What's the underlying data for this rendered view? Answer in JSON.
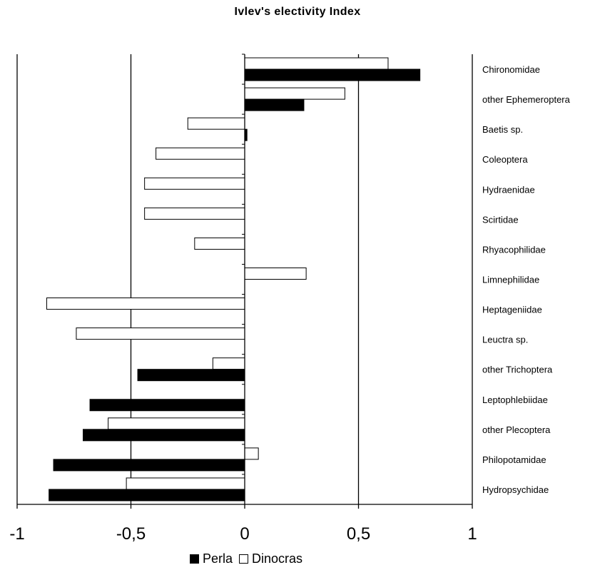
{
  "chart_data": {
    "type": "bar",
    "orientation": "horizontal",
    "title": "Ivlev's electivity Index",
    "xlabel": "",
    "ylabel": "",
    "xlim": [
      -1,
      1
    ],
    "xticks": [
      "-1",
      "-0,5",
      "0",
      "0,5",
      "1"
    ],
    "grid": "vertical major gridlines",
    "legend_position": "bottom",
    "categories": [
      "Chironomidae",
      "other Ephemeroptera",
      "Baetis sp.",
      "Coleoptera",
      "Hydraenidae",
      "Scirtidae",
      "Rhyacophilidae",
      "Limnephilidae",
      "Heptageniidae",
      "Leuctra sp.",
      "other Trichoptera",
      "Leptophlebiidae",
      "other Plecoptera",
      "Philopotamidae",
      "Hydropsychidae"
    ],
    "series": [
      {
        "name": "Dinocras",
        "color": "#ffffff",
        "values": [
          0.63,
          0.44,
          -0.25,
          -0.39,
          -0.44,
          -0.44,
          -0.22,
          0.27,
          -0.87,
          -0.74,
          -0.14,
          0,
          -0.6,
          0.06,
          -0.52
        ]
      },
      {
        "name": "Perla",
        "color": "#000000",
        "values": [
          0.77,
          0.26,
          0.01,
          0,
          0,
          0,
          0,
          0,
          0,
          0,
          -0.47,
          -0.68,
          -0.71,
          -0.84,
          -0.86
        ]
      }
    ]
  },
  "legend": {
    "perla": "Perla",
    "dinocras": "Dinocras"
  }
}
